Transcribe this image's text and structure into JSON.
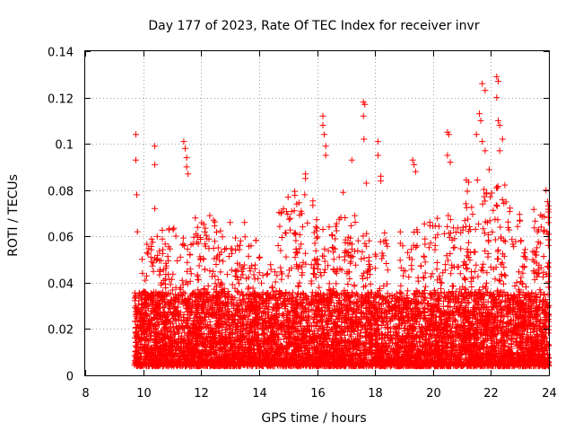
{
  "chart_data": {
    "type": "scatter",
    "title": "Day 177 of 2023, Rate Of TEC Index for receiver invr",
    "xlabel": "GPS time / hours",
    "ylabel": "ROTI / TECUs",
    "xlim": [
      8,
      24
    ],
    "ylim": [
      0,
      0.14
    ],
    "x_ticks": [
      8,
      10,
      12,
      14,
      16,
      18,
      20,
      22,
      24
    ],
    "y_ticks": [
      0,
      0.02,
      0.04,
      0.06,
      0.08,
      0.1,
      0.12,
      0.14
    ],
    "x_tick_labels": [
      "8",
      "10",
      "12",
      "14",
      "16",
      "18",
      "20",
      "22",
      "24"
    ],
    "y_tick_labels": [
      "0",
      "0.02",
      "0.04",
      "0.06",
      "0.08",
      "0.1",
      "0.12",
      "0.14"
    ],
    "grid": true,
    "marker": "+",
    "color": "#ff0000",
    "series": [
      {
        "name": "ROTI",
        "x_range": [
          9.7,
          24
        ],
        "points": [
          [
            9.75,
            0.104
          ],
          [
            9.75,
            0.093
          ],
          [
            9.78,
            0.078
          ],
          [
            9.8,
            0.062
          ],
          [
            10.4,
            0.099
          ],
          [
            10.4,
            0.091
          ],
          [
            10.4,
            0.072
          ],
          [
            11.4,
            0.101
          ],
          [
            11.45,
            0.098
          ],
          [
            11.5,
            0.094
          ],
          [
            11.5,
            0.09
          ],
          [
            11.55,
            0.087
          ],
          [
            11.8,
            0.068
          ],
          [
            12.3,
            0.069
          ],
          [
            13.0,
            0.066
          ],
          [
            13.5,
            0.066
          ],
          [
            15.0,
            0.077
          ],
          [
            15.3,
            0.074
          ],
          [
            15.6,
            0.087
          ],
          [
            15.6,
            0.085
          ],
          [
            16.2,
            0.112
          ],
          [
            16.2,
            0.108
          ],
          [
            16.25,
            0.104
          ],
          [
            16.3,
            0.099
          ],
          [
            16.3,
            0.095
          ],
          [
            16.9,
            0.079
          ],
          [
            17.2,
            0.093
          ],
          [
            17.6,
            0.118
          ],
          [
            17.65,
            0.117
          ],
          [
            17.6,
            0.112
          ],
          [
            17.62,
            0.102
          ],
          [
            17.7,
            0.083
          ],
          [
            18.1,
            0.101
          ],
          [
            18.1,
            0.095
          ],
          [
            18.2,
            0.086
          ],
          [
            18.2,
            0.084
          ],
          [
            19.3,
            0.093
          ],
          [
            19.35,
            0.091
          ],
          [
            19.4,
            0.088
          ],
          [
            20.5,
            0.105
          ],
          [
            20.55,
            0.104
          ],
          [
            20.5,
            0.095
          ],
          [
            20.6,
            0.092
          ],
          [
            21.6,
            0.113
          ],
          [
            21.65,
            0.11
          ],
          [
            21.5,
            0.104
          ],
          [
            21.7,
            0.101
          ],
          [
            21.8,
            0.097
          ],
          [
            21.7,
            0.126
          ],
          [
            21.8,
            0.123
          ],
          [
            22.2,
            0.129
          ],
          [
            22.25,
            0.127
          ],
          [
            22.2,
            0.12
          ],
          [
            22.25,
            0.11
          ],
          [
            22.3,
            0.108
          ],
          [
            22.4,
            0.102
          ],
          [
            22.3,
            0.097
          ],
          [
            23.0,
            0.067
          ],
          [
            23.6,
            0.062
          ],
          [
            23.9,
            0.08
          ],
          [
            23.95,
            0.075
          ]
        ]
      }
    ]
  }
}
